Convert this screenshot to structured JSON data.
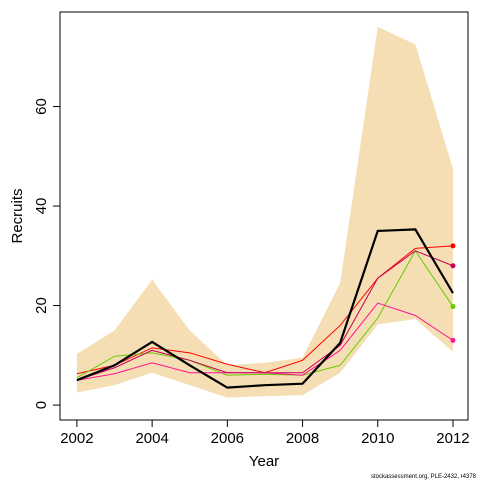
{
  "chart_data": {
    "type": "line",
    "x_label": "Year",
    "y_label": "Recruits",
    "footnote": "stockassessment.org, PLE-2432, r4378",
    "x": [
      2002,
      2003,
      2004,
      2005,
      2006,
      2007,
      2008,
      2009,
      2010,
      2011,
      2012
    ],
    "xlim": [
      2001.55,
      2012.4
    ],
    "xticks": [
      2002,
      2004,
      2006,
      2008,
      2010,
      2012
    ],
    "ylim": [
      -3,
      79
    ],
    "yticks": [
      0,
      20,
      40,
      60
    ],
    "band": {
      "color": "#f5deb3",
      "upper": [
        10.3,
        15,
        25.2,
        15,
        8,
        8.5,
        9.5,
        24.5,
        76,
        72.5,
        47.5
      ],
      "lower": [
        2.5,
        4,
        6.5,
        4,
        1.5,
        1.8,
        2,
        6.5,
        16.2,
        17.3,
        10.7
      ]
    },
    "end_markers": true,
    "series": [
      {
        "color": "#ff0000",
        "width": 1,
        "values": [
          6.3,
          8,
          11.5,
          10.5,
          8.2,
          6.5,
          9,
          16,
          25.5,
          31.5,
          32
        ]
      },
      {
        "color": "#66cc00",
        "width": 1,
        "values": [
          5.5,
          9.8,
          10.5,
          9,
          6,
          6.2,
          6,
          8,
          17.5,
          31,
          19.8
        ]
      },
      {
        "color": "#ff1493",
        "width": 1,
        "values": [
          5,
          6.3,
          8.5,
          6.5,
          6.5,
          6.5,
          6,
          11,
          20.5,
          18,
          13
        ]
      },
      {
        "color": "#c8005a",
        "width": 1,
        "values": [
          5,
          7.5,
          11,
          9,
          6.5,
          6.5,
          6.5,
          12,
          25.5,
          31,
          28
        ]
      },
      {
        "color": "#000000",
        "width": 2.2,
        "values": [
          5,
          8,
          12.7,
          8,
          3.5,
          4,
          4.3,
          12.5,
          35,
          35.3,
          22.5
        ]
      }
    ]
  }
}
